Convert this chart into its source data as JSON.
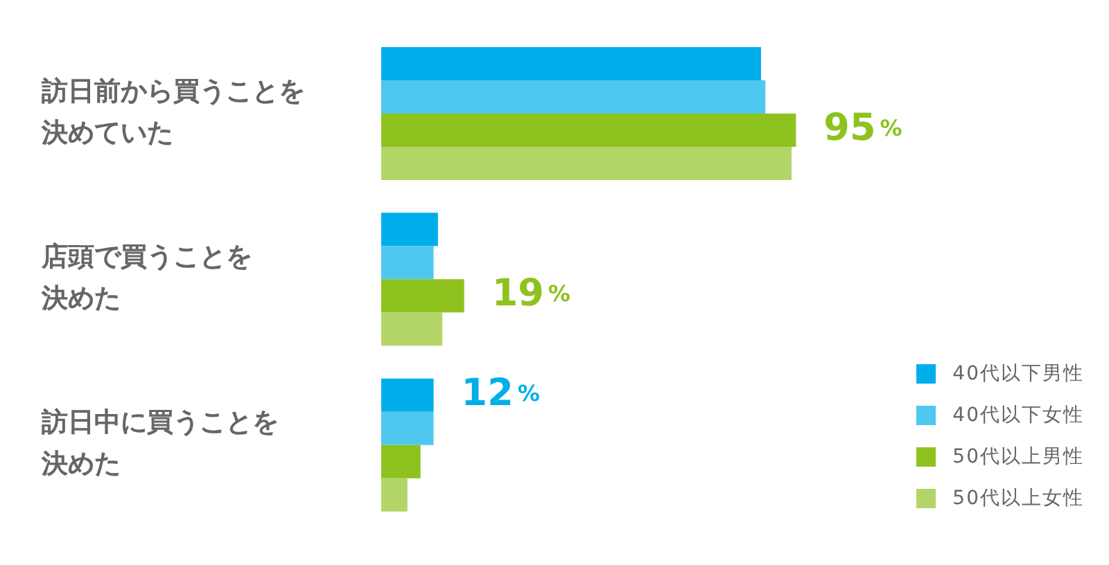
{
  "chart_data": {
    "type": "bar",
    "orientation": "horizontal",
    "categories": [
      "訪日前から買うことを決めていた",
      "店頭で買うことを決めた",
      "訪日中に買うことを決めた"
    ],
    "series": [
      {
        "name": "40代以下男性",
        "color": "#00aeeb",
        "values": [
          87,
          13,
          12
        ],
        "value_labels": [
          null,
          null,
          "12%"
        ]
      },
      {
        "name": "40代以下女性",
        "color": "#4fc8f0",
        "values": [
          88,
          12,
          12
        ],
        "value_labels": [
          null,
          null,
          null
        ]
      },
      {
        "name": "50代以上男性",
        "color": "#8dc21f",
        "values": [
          95,
          19,
          9
        ],
        "value_labels": [
          "95%",
          "19%",
          null
        ]
      },
      {
        "name": "50代以上女性",
        "color": "#b3d567",
        "values": [
          94,
          14,
          6
        ],
        "value_labels": [
          null,
          null,
          null
        ]
      }
    ],
    "legend": "bottom right"
  }
}
